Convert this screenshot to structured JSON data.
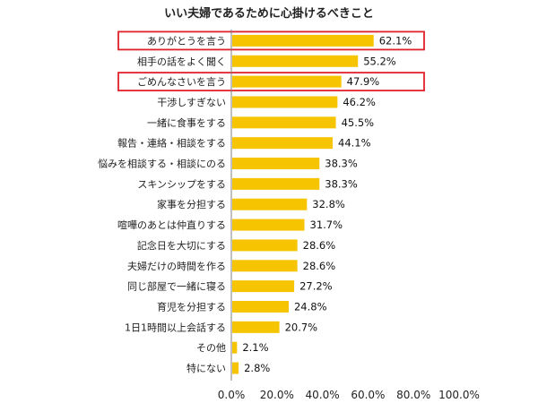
{
  "chart_data": {
    "type": "bar",
    "orientation": "horizontal",
    "title": "いい夫婦であるために心掛けるべきこと",
    "xlabel": "",
    "ylabel": "",
    "categories": [
      "ありがとうを言う",
      "相手の話をよく聞く",
      "ごめんなさいを言う",
      "干渉しすぎない",
      "一緒に食事をする",
      "報告・連絡・相談をする",
      "悩みを相談する・相談にのる",
      "スキンシップをする",
      "家事を分担する",
      "喧嘩のあとは仲直りする",
      "記念日を大切にする",
      "夫婦だけの時間を作る",
      "同じ部屋で一緒に寝る",
      "育児を分担する",
      "1日1時間以上会話する",
      "その他",
      "特にない"
    ],
    "values": [
      62.1,
      55.2,
      47.9,
      46.2,
      45.5,
      44.1,
      38.3,
      38.3,
      32.8,
      31.7,
      28.6,
      28.6,
      27.2,
      24.8,
      20.7,
      2.1,
      2.8
    ],
    "value_labels": [
      "62.1%",
      "55.2%",
      "47.9%",
      "46.2%",
      "45.5%",
      "44.1%",
      "38.3%",
      "38.3%",
      "32.8%",
      "31.7%",
      "28.6%",
      "28.6%",
      "27.2%",
      "24.8%",
      "20.7%",
      "2.1%",
      "2.8%"
    ],
    "xlim": [
      0,
      100
    ],
    "xticks": [
      0,
      20,
      40,
      60,
      80,
      100
    ],
    "xtick_labels": [
      "0.0%",
      "20.0%",
      "40.0%",
      "60.0%",
      "80.0%",
      "100.0%"
    ],
    "grid": false,
    "legend": "none",
    "highlighted_categories": [
      "ありがとうを言う",
      "ごめんなさいを言う"
    ],
    "colors": {
      "bar": "#F6C400",
      "highlight_box": "#E0202A",
      "axis": "#808080",
      "text": "#222222"
    }
  }
}
